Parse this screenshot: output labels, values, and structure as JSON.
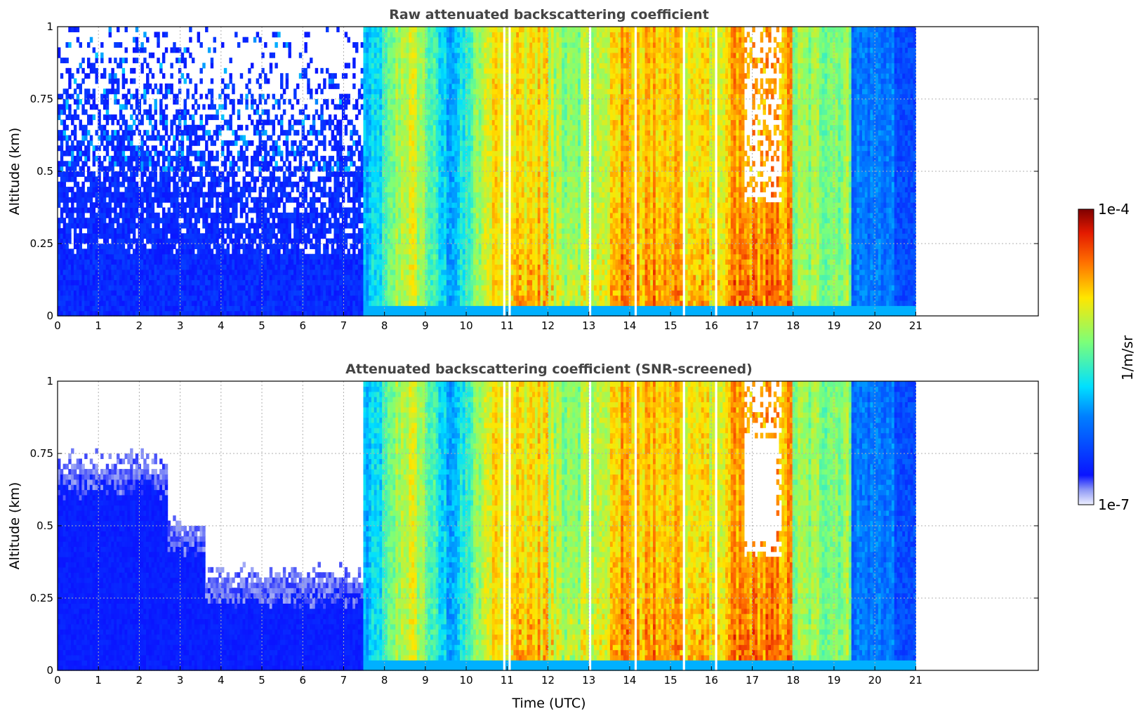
{
  "chart_data": [
    {
      "type": "heatmap",
      "title": "Raw attenuated backscattering coefficient",
      "xlabel": "",
      "ylabel": "Altitude (km)",
      "xlim": [
        0,
        24
      ],
      "ylim": [
        0,
        1
      ],
      "x_ticks": [
        "0",
        "1",
        "2",
        "3",
        "4",
        "5",
        "6",
        "7",
        "8",
        "9",
        "10",
        "11",
        "12",
        "13",
        "14",
        "15",
        "16",
        "17",
        "18",
        "19",
        "20",
        "21"
      ],
      "y_ticks": [
        "0",
        "0.25",
        "0.5",
        "0.75",
        "1"
      ],
      "grid": true,
      "data_end_time": 21,
      "screened": false
    },
    {
      "type": "heatmap",
      "title": "Attenuated backscattering coefficient (SNR-screened)",
      "xlabel": "Time (UTC)",
      "ylabel": "Altitude (km)",
      "xlim": [
        0,
        24
      ],
      "ylim": [
        0,
        1
      ],
      "x_ticks": [
        "0",
        "1",
        "2",
        "3",
        "4",
        "5",
        "6",
        "7",
        "8",
        "9",
        "10",
        "11",
        "12",
        "13",
        "14",
        "15",
        "16",
        "17",
        "18",
        "19",
        "20",
        "21"
      ],
      "y_ticks": [
        "0",
        "0.25",
        "0.5",
        "0.75",
        "1"
      ],
      "grid": true,
      "data_end_time": 21,
      "screened": true
    }
  ],
  "colorbar": {
    "label": "1/m/sr",
    "max_label": "1e-4",
    "min_label": "1e-7",
    "colormap": "jet"
  }
}
